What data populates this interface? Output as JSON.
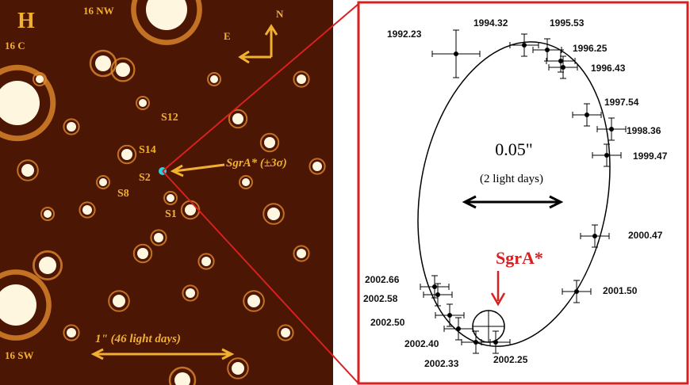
{
  "left_image": {
    "band": "H",
    "field_labels": {
      "nw": "16 NW",
      "c": "16 C",
      "sw": "16 SW"
    },
    "compass": {
      "north": "N",
      "east": "E"
    },
    "stars": [
      "S12",
      "S14",
      "S2",
      "S8",
      "S1"
    ],
    "sgra": "SgrA* (±3σ)",
    "scale": "1\" (46 light days)"
  },
  "orbit_panel": {
    "scale": "0.05\"",
    "scale_note": "(2 light days)",
    "sgra": "SgrA*",
    "epochs": [
      "1992.23",
      "1994.32",
      "1995.53",
      "1996.25",
      "1996.43",
      "1997.54",
      "1998.36",
      "1999.47",
      "2000.47",
      "2001.50",
      "2002.66",
      "2002.58",
      "2002.50",
      "2002.40",
      "2002.33",
      "2002.25"
    ]
  }
}
